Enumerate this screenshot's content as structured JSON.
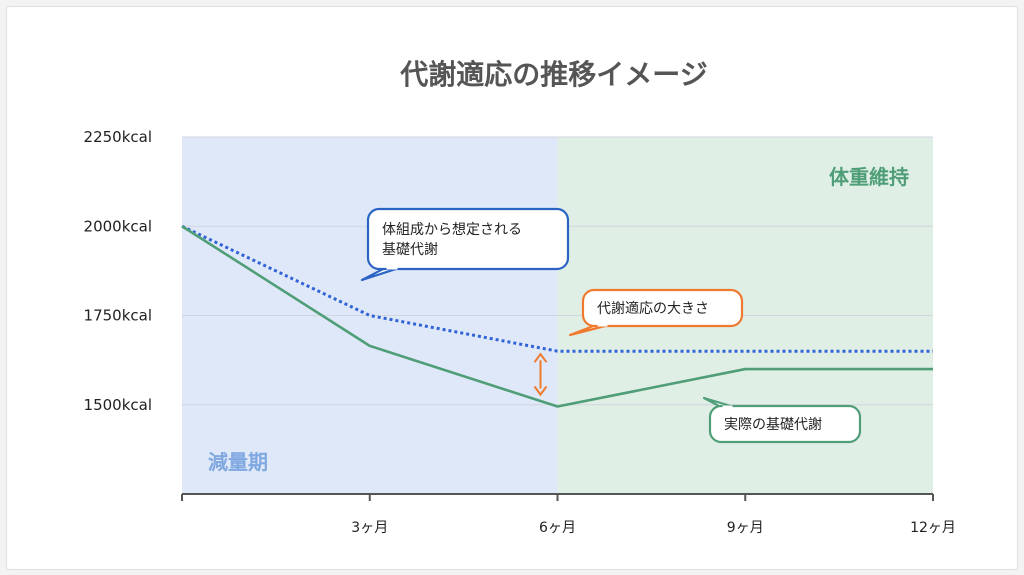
{
  "chart_data": {
    "type": "line",
    "title": "代謝適応の推移イメージ",
    "x": [
      0,
      3,
      6,
      9,
      12
    ],
    "x_tick_labels": [
      "3ヶ月",
      "6ヶ月",
      "9ヶ月",
      "12ヶ月"
    ],
    "y_tick_labels": [
      "2250kcal",
      "2000kcal",
      "1750kcal",
      "1500kcal"
    ],
    "ylim": [
      1250,
      2250
    ],
    "xlim": [
      0,
      12
    ],
    "grid": true,
    "series": [
      {
        "name": "体組成から想定される基礎代謝",
        "style": "dotted",
        "color": "#2f63d6",
        "x": [
          0,
          3,
          6,
          12
        ],
        "values": [
          2000,
          1750,
          1650,
          1650
        ]
      },
      {
        "name": "実際の基礎代謝",
        "style": "solid",
        "color": "#4f9e78",
        "x": [
          0,
          3,
          6,
          9,
          12
        ],
        "values": [
          2000,
          1665,
          1495,
          1600,
          1600
        ]
      }
    ],
    "regions": [
      {
        "label": "減量期",
        "x_range": [
          0,
          6
        ],
        "color": "#dfe8f8",
        "label_color": "#7fa8e0"
      },
      {
        "label": "体重維持",
        "x_range": [
          6,
          12
        ],
        "color": "#e0efe6",
        "label_color": "#4f9e78"
      }
    ],
    "annotations": [
      {
        "text": [
          "体組成から想定される",
          "基礎代謝"
        ],
        "border_color": "#2b64c4"
      },
      {
        "text": [
          "代謝適応の大きさ"
        ],
        "border_color": "#ef7a2e"
      },
      {
        "text": [
          "実際の基礎代謝"
        ],
        "border_color": "#4f9e78"
      }
    ],
    "gap_arrow": {
      "x": 6,
      "from": 1650,
      "to": 1495,
      "color": "#ef7a2e"
    }
  }
}
